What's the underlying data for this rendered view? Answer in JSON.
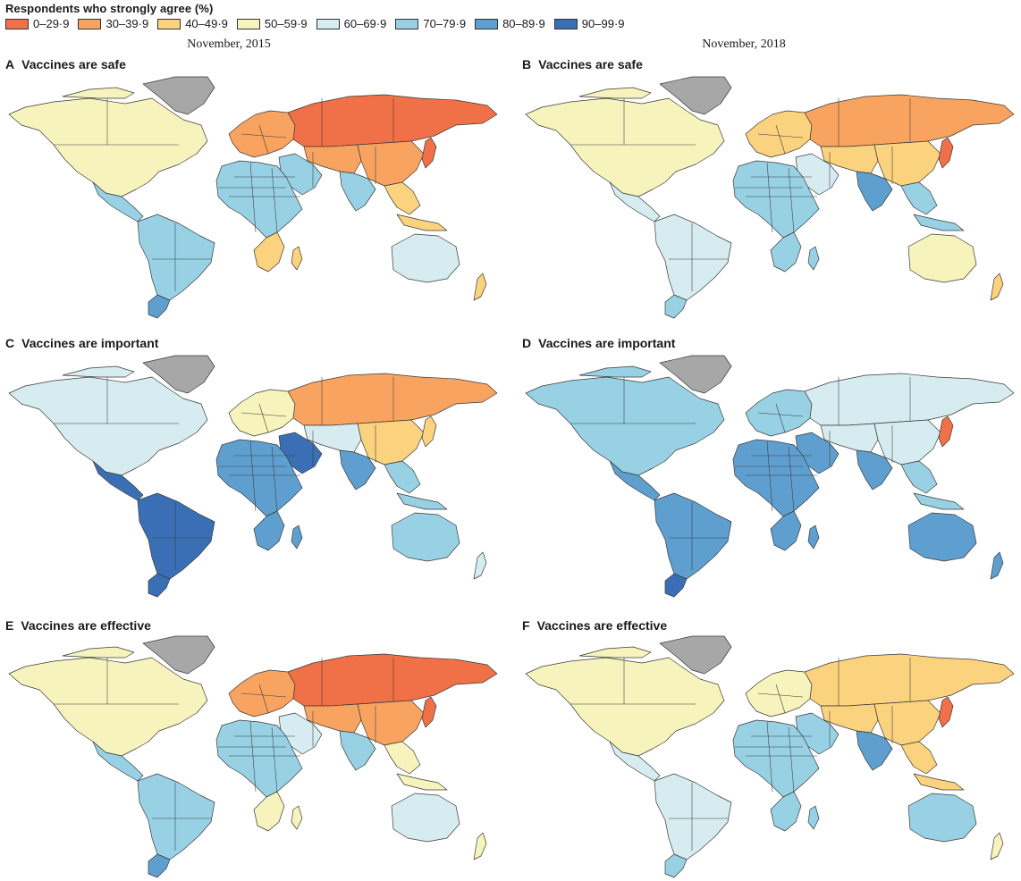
{
  "legend": {
    "title": "Respondents who strongly agree (%)",
    "items": [
      {
        "label": "0–29·9",
        "color": "#f07048"
      },
      {
        "label": "30–39·9",
        "color": "#f8a460"
      },
      {
        "label": "40–49·9",
        "color": "#fbd27e"
      },
      {
        "label": "50–59·9",
        "color": "#f7f3bc"
      },
      {
        "label": "60–69·9",
        "color": "#d6ecf0"
      },
      {
        "label": "70–79·9",
        "color": "#98d1e4"
      },
      {
        "label": "80–89·9",
        "color": "#5f9fcf"
      },
      {
        "label": "90–99·9",
        "color": "#3a6fb5"
      }
    ],
    "no_data_color": "#a7a7a7"
  },
  "columns": {
    "left": "November, 2015",
    "right": "November, 2018"
  },
  "panels": [
    {
      "letter": "A",
      "title": "Vaccines are safe",
      "fills": {
        "na": 3,
        "greenland": 8,
        "sa": 5,
        "sa_south": 6,
        "europe": 1,
        "russia": 0,
        "asia": 1,
        "china": 1,
        "me": 5,
        "india": 5,
        "sea": 2,
        "africa": 5,
        "africa_south": 2,
        "australia": 4,
        "japan": 0,
        "nz": 2
      }
    },
    {
      "letter": "B",
      "title": "Vaccines are safe",
      "fills": {
        "na": 3,
        "greenland": 8,
        "sa": 4,
        "sa_south": 5,
        "europe": 2,
        "russia": 1,
        "asia": 2,
        "china": 2,
        "me": 4,
        "india": 6,
        "sea": 5,
        "africa": 5,
        "africa_south": 5,
        "australia": 3,
        "japan": 0,
        "nz": 2
      }
    },
    {
      "letter": "C",
      "title": "Vaccines are important",
      "fills": {
        "na": 4,
        "greenland": 8,
        "sa": 7,
        "sa_south": 7,
        "europe": 3,
        "russia": 1,
        "asia": 4,
        "china": 2,
        "me": 7,
        "india": 6,
        "sea": 5,
        "africa": 6,
        "africa_south": 6,
        "australia": 5,
        "japan": 2,
        "nz": 4
      }
    },
    {
      "letter": "D",
      "title": "Vaccines are important",
      "fills": {
        "na": 5,
        "greenland": 8,
        "sa": 6,
        "sa_south": 7,
        "europe": 5,
        "russia": 4,
        "asia": 4,
        "china": 4,
        "me": 6,
        "india": 6,
        "sea": 5,
        "africa": 6,
        "africa_south": 6,
        "australia": 6,
        "japan": 0,
        "nz": 6
      }
    },
    {
      "letter": "E",
      "title": "Vaccines are effective",
      "fills": {
        "na": 3,
        "greenland": 8,
        "sa": 5,
        "sa_south": 6,
        "europe": 1,
        "russia": 0,
        "asia": 1,
        "china": 1,
        "me": 4,
        "india": 5,
        "sea": 3,
        "africa": 5,
        "africa_south": 3,
        "australia": 4,
        "japan": 0,
        "nz": 3
      }
    },
    {
      "letter": "F",
      "title": "Vaccines are effective",
      "fills": {
        "na": 3,
        "greenland": 8,
        "sa": 4,
        "sa_south": 5,
        "europe": 3,
        "russia": 2,
        "asia": 2,
        "china": 2,
        "me": 5,
        "india": 6,
        "sea": 2,
        "africa": 5,
        "africa_south": 5,
        "australia": 5,
        "japan": 0,
        "nz": 3
      }
    }
  ]
}
